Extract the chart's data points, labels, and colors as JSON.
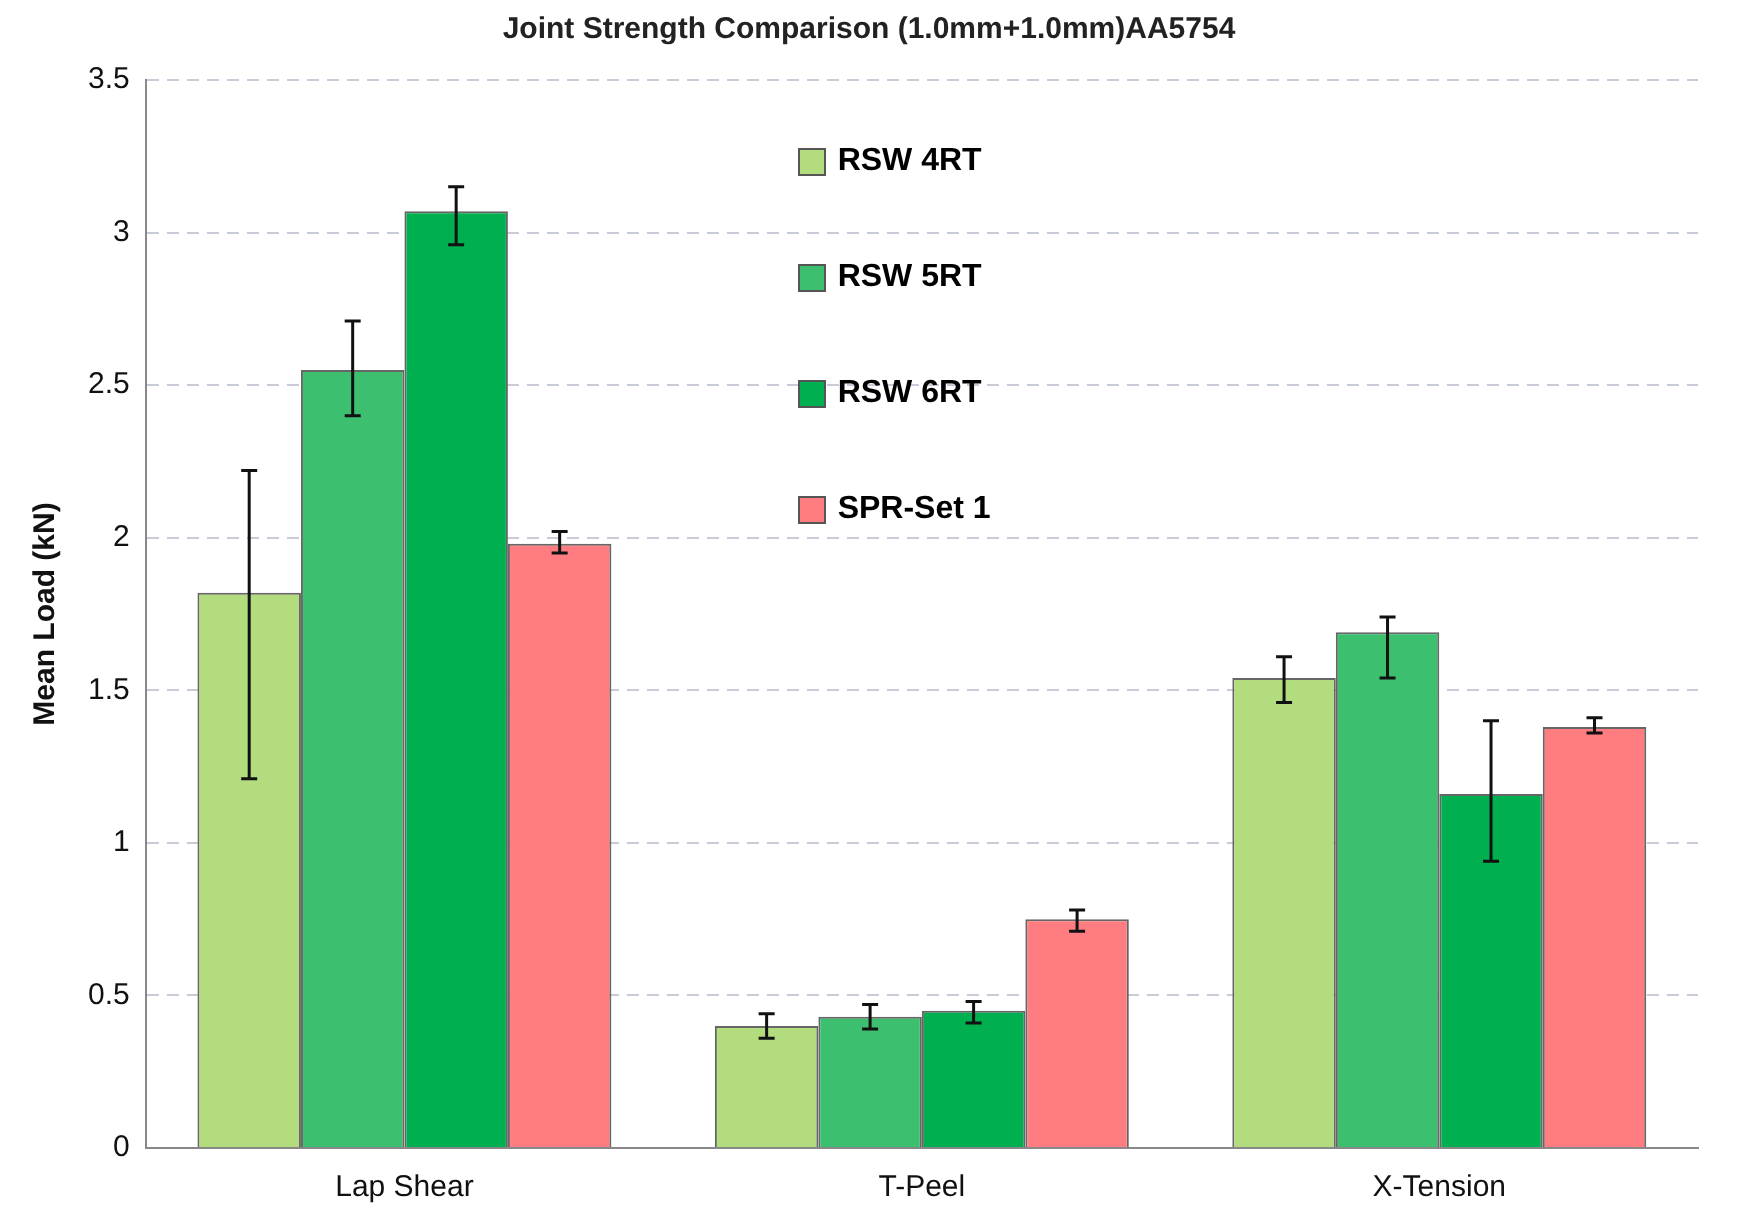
{
  "chart_data": {
    "type": "bar",
    "title": "Joint Strength Comparison (1.0mm+1.0mm)AA5754",
    "ylabel": "Mean Load (kN)",
    "categories": [
      "Lap Shear",
      "T-Peel",
      "X-Tension"
    ],
    "series": [
      {
        "name": "RSW 4RT",
        "color": "#b3dc7e",
        "values": [
          1.82,
          0.4,
          1.54
        ],
        "errors": [
          [
            1.21,
            2.22
          ],
          [
            0.36,
            0.44
          ],
          [
            1.46,
            1.61
          ]
        ]
      },
      {
        "name": "RSW 5RT",
        "color": "#3cc070",
        "values": [
          2.55,
          0.43,
          1.69
        ],
        "errors": [
          [
            2.4,
            2.71
          ],
          [
            0.39,
            0.47
          ],
          [
            1.54,
            1.74
          ]
        ]
      },
      {
        "name": "RSW 6RT",
        "color": "#00b050",
        "values": [
          3.07,
          0.45,
          1.16
        ],
        "errors": [
          [
            2.96,
            3.15
          ],
          [
            0.41,
            0.48
          ],
          [
            0.94,
            1.4
          ]
        ]
      },
      {
        "name": "SPR-Set 1",
        "color": "#ff7c80",
        "values": [
          1.98,
          0.75,
          1.38
        ],
        "errors": [
          [
            1.95,
            2.02
          ],
          [
            0.71,
            0.78
          ],
          [
            1.36,
            1.41
          ]
        ]
      }
    ],
    "ylim": [
      0,
      3.5
    ],
    "yticks": [
      0,
      0.5,
      1,
      1.5,
      2,
      2.5,
      3,
      3.5
    ],
    "grid": "y",
    "legend": "top"
  }
}
